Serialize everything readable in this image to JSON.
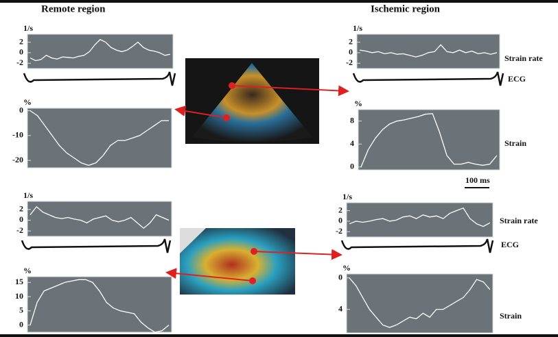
{
  "figure": {
    "headers": [
      "Remote region",
      "Ischemic region"
    ],
    "side_labels_top": [
      "Strain rate",
      "ECG",
      "Strain"
    ],
    "side_labels_bottom": [
      "Strain rate",
      "ECG",
      "Strain"
    ],
    "scale_label": "100 ms"
  },
  "chart_data": [
    {
      "type": "line",
      "y_label": "1/s",
      "ylim": [
        -3,
        3.5
      ],
      "yticks": [
        2,
        0,
        -2
      ],
      "color": "#ffffff",
      "values": [
        -1,
        -1.5,
        -1.3,
        -0.5,
        -1,
        -1.2,
        -0.8,
        -0.9,
        -1,
        -0.7,
        -0.5,
        0.2,
        1.5,
        2.5,
        2,
        1,
        0.5,
        0.2,
        0.5,
        1.2,
        2,
        1,
        0.5,
        0.3,
        0,
        -0.5,
        -0.3
      ]
    },
    {
      "type": "line",
      "y_label": "%",
      "ylim": [
        -23,
        1
      ],
      "yticks": [
        0,
        -10,
        -20
      ],
      "color": "#ffffff",
      "values": [
        0,
        -2,
        -6,
        -10,
        -14,
        -17,
        -19,
        -21,
        -22,
        -21,
        -18,
        -14,
        -12,
        -12,
        -11,
        -10,
        -8,
        -6,
        -4,
        -4
      ]
    },
    {
      "type": "line",
      "y_label": "1/s",
      "ylim": [
        -3,
        3.5
      ],
      "yticks": [
        2,
        0,
        -2
      ],
      "color": "#ffffff",
      "values": [
        0.5,
        0.3,
        0,
        0.2,
        -0.2,
        0,
        -0.3,
        -0.2,
        -0.5,
        -0.8,
        -0.5,
        0,
        0.2,
        1.5,
        0.2,
        0,
        0.5,
        0,
        0.3,
        -0.2,
        0,
        -0.3,
        0
      ]
    },
    {
      "type": "line",
      "y_label": "%",
      "ylim": [
        -0.5,
        10
      ],
      "yticks": [
        8,
        4,
        0
      ],
      "color": "#ffffff",
      "values": [
        0,
        3,
        5,
        6.5,
        7.5,
        8,
        8.2,
        8.5,
        8.8,
        9.2,
        9.3,
        6,
        2,
        0.5,
        0.5,
        0.8,
        0.5,
        0.3,
        0.5,
        2
      ]
    },
    {
      "type": "line",
      "y_label": "1/s",
      "ylim": [
        -3,
        3.5
      ],
      "yticks": [
        2,
        0,
        -2
      ],
      "color": "#ffffff",
      "values": [
        1,
        2.5,
        1.5,
        1,
        0.5,
        0.3,
        0.5,
        0.2,
        0,
        -0.5,
        0.2,
        0.5,
        0.8,
        0,
        -0.3,
        0,
        0.5,
        -0.5,
        -1.5,
        -0.5,
        1,
        0.5,
        0
      ]
    },
    {
      "type": "line",
      "y_label": "%",
      "ylim": [
        -2.5,
        17
      ],
      "yticks": [
        15,
        10,
        5,
        0
      ],
      "color": "#ffffff",
      "values": [
        0,
        8,
        12,
        13,
        14,
        15,
        15.5,
        16,
        16,
        15,
        12,
        8,
        6,
        5,
        4.5,
        4,
        1,
        -1,
        -2.5,
        -2,
        0
      ]
    },
    {
      "type": "line",
      "y_label": "1/s",
      "ylim": [
        -3,
        3.5
      ],
      "yticks": [
        2,
        0,
        -2
      ],
      "color": "#ffffff",
      "values": [
        -0.5,
        0,
        -0.2,
        0,
        0.3,
        0.5,
        0,
        0.2,
        0.8,
        1,
        0.5,
        1.2,
        0.8,
        1,
        0.5,
        1.5,
        2,
        2.5,
        0.5,
        -0.5,
        -1,
        -0.3
      ]
    },
    {
      "type": "line",
      "y_label": "%",
      "ylim": [
        7,
        -0.5
      ],
      "yticks": [
        0,
        4
      ],
      "color": "#ffffff",
      "values": [
        0,
        1,
        2.5,
        4,
        5,
        6,
        6.3,
        6,
        5.5,
        5,
        5.2,
        4.5,
        5,
        4,
        4,
        3.5,
        3,
        2.5,
        1.5,
        0.2,
        0.5,
        1.5
      ]
    }
  ]
}
